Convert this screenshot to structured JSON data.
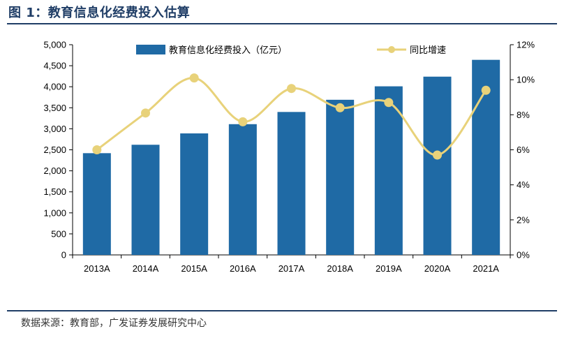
{
  "figure": {
    "title": "图 1：教育信息化经费投入估算",
    "source": "数据来源：教育部，广发证券发展研究中心"
  },
  "colors": {
    "bar": "#1f6aa5",
    "line": "#e8d27a",
    "title": "#1f3d66"
  },
  "chart_data": {
    "type": "bar",
    "categories": [
      "2013A",
      "2014A",
      "2015A",
      "2016A",
      "2017A",
      "2018A",
      "2019A",
      "2020A",
      "2021A"
    ],
    "series": [
      {
        "name": "教育信息化经费投入（亿元）",
        "type": "bar",
        "axis": "left",
        "values": [
          2420,
          2620,
          2890,
          3110,
          3400,
          3690,
          4010,
          4240,
          4640
        ]
      },
      {
        "name": "同比增速",
        "type": "line",
        "axis": "right",
        "values": [
          6.0,
          8.1,
          10.1,
          7.6,
          9.5,
          8.4,
          8.7,
          5.7,
          9.4
        ]
      }
    ],
    "y_left": {
      "min": 0,
      "max": 5000,
      "step": 500,
      "tick_labels": [
        "0",
        "500",
        "1,000",
        "1,500",
        "2,000",
        "2,500",
        "3,000",
        "3,500",
        "4,000",
        "4,500",
        "5,000"
      ]
    },
    "y_right": {
      "min": 0,
      "max": 12,
      "step": 2,
      "tick_labels": [
        "0%",
        "2%",
        "4%",
        "6%",
        "8%",
        "10%",
        "12%"
      ]
    },
    "grid": false,
    "legend": "top"
  }
}
